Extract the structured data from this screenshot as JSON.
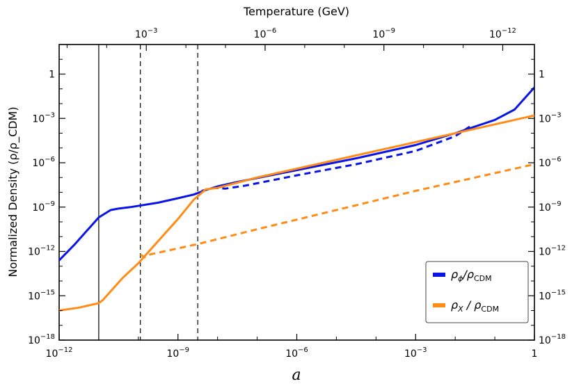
{
  "chart_data": {
    "type": "line",
    "xlabel": "a",
    "ylabel": "Normalized Density (ρ/ρ_CDM)",
    "top_axis_title": "Temperature (GeV)",
    "x_scale": "log",
    "y_scale": "log",
    "xlim_log10": [
      -12,
      0
    ],
    "ylim_log10": [
      -18,
      2
    ],
    "x_ticks": [
      {
        "log": -12,
        "label": "10",
        "sup": "−12"
      },
      {
        "log": -9,
        "label": "10",
        "sup": "−9"
      },
      {
        "log": -6,
        "label": "10",
        "sup": "−6"
      },
      {
        "log": -3,
        "label": "10",
        "sup": "−3"
      },
      {
        "log": 0,
        "label": "1",
        "sup": ""
      }
    ],
    "y_ticks": [
      {
        "log": 0,
        "label": "1",
        "sup": ""
      },
      {
        "log": -3,
        "label": "10",
        "sup": "−3"
      },
      {
        "log": -6,
        "label": "10",
        "sup": "−6"
      },
      {
        "log": -9,
        "label": "10",
        "sup": "−9"
      },
      {
        "log": -12,
        "label": "10",
        "sup": "−12"
      },
      {
        "log": -15,
        "label": "10",
        "sup": "−15"
      },
      {
        "log": -18,
        "label": "10",
        "sup": "−18"
      }
    ],
    "top_ticks": [
      {
        "log_a": -9.8,
        "label": "10",
        "sup": "−3"
      },
      {
        "log_a": -6.8,
        "label": "10",
        "sup": "−6"
      },
      {
        "log_a": -3.8,
        "label": "10",
        "sup": "−9"
      },
      {
        "log_a": -0.8,
        "label": "10",
        "sup": "−12"
      }
    ],
    "vertical_lines": [
      {
        "log_a": -11.0,
        "style": "solid"
      },
      {
        "log_a": -9.95,
        "style": "dashed"
      },
      {
        "log_a": -8.5,
        "style": "dashed"
      }
    ],
    "series": [
      {
        "name": "ρ_ϕ / ρ_CDM",
        "color": "#0a14e6",
        "dash": false,
        "points": [
          [
            -12,
            -12.6
          ],
          [
            -11.6,
            -11.5
          ],
          [
            -11.3,
            -10.6
          ],
          [
            -11.0,
            -9.7
          ],
          [
            -10.7,
            -9.2
          ],
          [
            -10.5,
            -9.1
          ],
          [
            -10.2,
            -9.0
          ],
          [
            -9.5,
            -8.7
          ],
          [
            -9.0,
            -8.4
          ],
          [
            -8.6,
            -8.15
          ],
          [
            -8.3,
            -7.85
          ],
          [
            -8.0,
            -7.6
          ],
          [
            -7.5,
            -7.3
          ],
          [
            -6,
            -6.5
          ],
          [
            -4.5,
            -5.7
          ],
          [
            -3,
            -4.8
          ],
          [
            -2,
            -4.0
          ],
          [
            -1,
            -3.1
          ],
          [
            -0.5,
            -2.4
          ],
          [
            -0.2,
            -1.5
          ],
          [
            0,
            -0.9
          ]
        ]
      },
      {
        "name": "ρ_ϕ dashed",
        "color": "#0a14e6",
        "dash": true,
        "points": [
          [
            -8.4,
            -7.9
          ],
          [
            -8.1,
            -7.7
          ],
          [
            -7.8,
            -7.75
          ],
          [
            -7.3,
            -7.55
          ],
          [
            -6,
            -6.85
          ],
          [
            -4.5,
            -6.1
          ],
          [
            -3,
            -5.2
          ],
          [
            -2,
            -4.2
          ],
          [
            -1.6,
            -3.5
          ]
        ]
      },
      {
        "name": "ρ_X / ρ_CDM",
        "color": "#ff8c16",
        "dash": false,
        "points": [
          [
            -12,
            -16.0
          ],
          [
            -11.5,
            -15.8
          ],
          [
            -11.0,
            -15.5
          ],
          [
            -10.9,
            -15.3
          ],
          [
            -10.7,
            -14.7
          ],
          [
            -10.4,
            -13.8
          ],
          [
            -10.0,
            -12.8
          ],
          [
            -9.5,
            -11.3
          ],
          [
            -9.0,
            -9.8
          ],
          [
            -8.6,
            -8.5
          ],
          [
            -8.3,
            -7.8
          ],
          [
            -8.0,
            -7.7
          ],
          [
            -7.0,
            -7.0
          ],
          [
            -5,
            -5.8
          ],
          [
            -3,
            -4.6
          ],
          [
            -1,
            -3.4
          ],
          [
            0,
            -2.8
          ]
        ]
      },
      {
        "name": "ρ_X dashed",
        "color": "#ff8c16",
        "dash": true,
        "points": [
          [
            -9.95,
            -12.2
          ],
          [
            -9.85,
            -12.4
          ],
          [
            -9.7,
            -12.2
          ],
          [
            -8.5,
            -11.5
          ],
          [
            -7,
            -10.5
          ],
          [
            -5,
            -9.2
          ],
          [
            -3,
            -7.9
          ],
          [
            -1,
            -6.7
          ],
          [
            0,
            -6.1
          ]
        ]
      }
    ],
    "legend": [
      {
        "main": "ρ",
        "sub": "ϕ",
        "rest": "/ρ",
        "sub2": "CDM",
        "color": "#0a14e6"
      },
      {
        "main": "ρ",
        "sub": "X",
        "rest": " / ρ",
        "sub2": "CDM",
        "color": "#ff8c16"
      }
    ],
    "legend_position": "bottom-right"
  }
}
